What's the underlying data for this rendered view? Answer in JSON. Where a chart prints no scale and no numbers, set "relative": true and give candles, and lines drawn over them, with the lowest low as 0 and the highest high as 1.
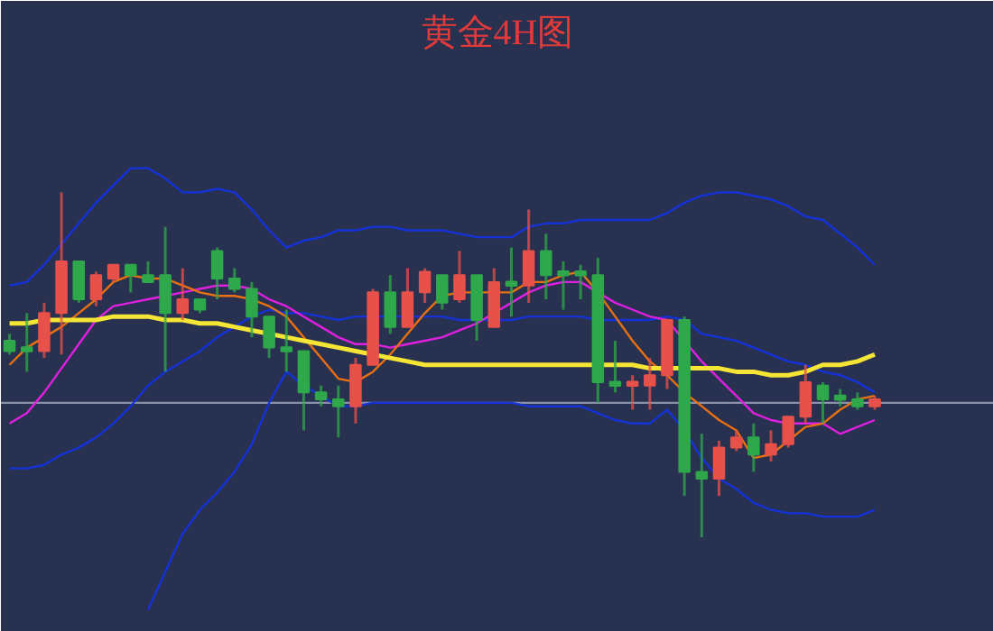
{
  "chart_data": {
    "type": "candlestick",
    "title": "黄金4H图",
    "relative": true,
    "categories": [
      null,
      null,
      null,
      null,
      null,
      null,
      null,
      null,
      null,
      null,
      null,
      null,
      null,
      null,
      null,
      null,
      null,
      null,
      null,
      null,
      null,
      null,
      null,
      null,
      null,
      null,
      null,
      null,
      null,
      null,
      null,
      null,
      null,
      null,
      null,
      null,
      null,
      null,
      null,
      null,
      null,
      null,
      null,
      null,
      null,
      null,
      null,
      null,
      null,
      null,
      null
    ],
    "ohlc": [
      [
        0.57,
        0.59,
        0.53,
        0.54
      ],
      [
        0.55,
        0.65,
        0.48,
        0.54
      ],
      [
        0.54,
        0.68,
        0.52,
        0.65
      ],
      [
        0.65,
        1.0,
        0.53,
        0.8
      ],
      [
        0.8,
        0.8,
        0.68,
        0.69
      ],
      [
        0.69,
        0.77,
        0.67,
        0.76
      ],
      [
        0.75,
        0.79,
        0.74,
        0.79
      ],
      [
        0.79,
        0.79,
        0.71,
        0.76
      ],
      [
        0.76,
        0.8,
        0.74,
        0.74
      ],
      [
        0.76,
        0.9,
        0.48,
        0.65
      ],
      [
        0.65,
        0.78,
        0.63,
        0.69
      ],
      [
        0.69,
        0.69,
        0.65,
        0.66
      ],
      [
        0.83,
        0.84,
        0.69,
        0.75
      ],
      [
        0.75,
        0.78,
        0.71,
        0.72
      ],
      [
        0.72,
        0.74,
        0.58,
        0.64
      ],
      [
        0.64,
        0.64,
        0.52,
        0.55
      ],
      [
        0.55,
        0.66,
        0.48,
        0.54
      ],
      [
        0.54,
        0.54,
        0.31,
        0.42
      ],
      [
        0.42,
        0.44,
        0.38,
        0.4
      ],
      [
        0.4,
        0.44,
        0.29,
        0.38
      ],
      [
        0.38,
        0.52,
        0.33,
        0.5
      ],
      [
        0.5,
        0.72,
        0.5,
        0.71
      ],
      [
        0.71,
        0.76,
        0.59,
        0.61
      ],
      [
        0.61,
        0.78,
        0.61,
        0.71
      ],
      [
        0.71,
        0.78,
        0.68,
        0.77
      ],
      [
        0.76,
        0.76,
        0.66,
        0.68
      ],
      [
        0.69,
        0.83,
        0.68,
        0.76
      ],
      [
        0.76,
        0.76,
        0.57,
        0.63
      ],
      [
        0.61,
        0.78,
        0.61,
        0.74
      ],
      [
        0.74,
        0.84,
        0.64,
        0.73
      ],
      [
        0.73,
        0.95,
        0.68,
        0.83
      ],
      [
        0.83,
        0.88,
        0.69,
        0.76
      ],
      [
        0.77,
        0.8,
        0.66,
        0.76
      ],
      [
        0.77,
        0.79,
        0.69,
        0.76
      ],
      [
        0.76,
        0.81,
        0.39,
        0.45
      ],
      [
        0.45,
        0.57,
        0.42,
        0.44
      ],
      [
        0.44,
        0.47,
        0.37,
        0.45
      ],
      [
        0.44,
        0.52,
        0.37,
        0.47
      ],
      [
        0.47,
        0.63,
        0.43,
        0.63
      ],
      [
        0.63,
        0.64,
        0.12,
        0.19
      ],
      [
        0.19,
        0.3,
        0.0,
        0.17
      ],
      [
        0.17,
        0.28,
        0.12,
        0.26
      ],
      [
        0.26,
        0.31,
        0.25,
        0.29
      ],
      [
        0.29,
        0.33,
        0.19,
        0.24
      ],
      [
        0.24,
        0.31,
        0.22,
        0.27
      ],
      [
        0.27,
        0.35,
        0.26,
        0.35
      ],
      [
        0.35,
        0.5,
        0.33,
        0.45
      ],
      [
        0.44,
        0.45,
        0.33,
        0.4
      ],
      [
        0.41,
        0.43,
        0.38,
        0.4
      ],
      [
        0.4,
        0.42,
        0.37,
        0.38
      ],
      [
        0.38,
        0.41,
        0.37,
        0.4
      ]
    ],
    "colors": [
      "#2ea84a",
      "#2ea84a",
      "#e8504a",
      "#e8504a",
      "#2ea84a",
      "#e8504a",
      "#e8504a",
      "#2ea84a",
      "#2ea84a",
      "#2ea84a",
      "#e8504a",
      "#2ea84a",
      "#2ea84a",
      "#2ea84a",
      "#2ea84a",
      "#2ea84a",
      "#2ea84a",
      "#2ea84a",
      "#2ea84a",
      "#2ea84a",
      "#e8504a",
      "#e8504a",
      "#2ea84a",
      "#e8504a",
      "#e8504a",
      "#2ea84a",
      "#e8504a",
      "#2ea84a",
      "#e8504a",
      "#2ea84a",
      "#e8504a",
      "#2ea84a",
      "#2ea84a",
      "#2ea84a",
      "#2ea84a",
      "#2ea84a",
      "#e8504a",
      "#e8504a",
      "#e8504a",
      "#2ea84a",
      "#2ea84a",
      "#e8504a",
      "#e8504a",
      "#2ea84a",
      "#e8504a",
      "#e8504a",
      "#e8504a",
      "#2ea84a",
      "#2ea84a",
      "#2ea84a",
      "#e8504a"
    ],
    "series": [
      {
        "type": "line",
        "color": "#1432d8",
        "values": [
          0.73,
          0.74,
          0.79,
          0.85,
          0.91,
          0.97,
          1.02,
          1.07,
          1.07,
          1.04,
          1.0,
          1.0,
          1.01,
          1.0,
          0.95,
          0.89,
          0.84,
          0.86,
          0.87,
          0.89,
          0.89,
          0.9,
          0.9,
          0.89,
          0.89,
          0.89,
          0.88,
          0.87,
          0.87,
          0.87,
          0.9,
          0.91,
          0.91,
          0.92,
          0.92,
          0.92,
          0.92,
          0.92,
          0.94,
          0.97,
          0.99,
          1.0,
          1.0,
          0.99,
          0.98,
          0.96,
          0.93,
          0.92,
          0.88,
          0.84,
          0.79
        ]
      },
      {
        "type": "line",
        "color": "#1432d8",
        "values": [
          0.2,
          0.2,
          0.21,
          0.24,
          0.26,
          0.29,
          0.33,
          0.38,
          0.44,
          0.48,
          0.51,
          0.54,
          0.58,
          0.61,
          0.64,
          0.66,
          0.65,
          0.65,
          0.64,
          0.63,
          0.64,
          0.64,
          0.64,
          0.64,
          0.64,
          0.64,
          0.63,
          0.63,
          0.63,
          0.63,
          0.64,
          0.64,
          0.64,
          0.64,
          0.63,
          0.63,
          0.63,
          0.63,
          0.64,
          0.63,
          0.59,
          0.58,
          0.57,
          0.55,
          0.53,
          0.51,
          0.5,
          0.48,
          0.47,
          0.45,
          0.42
        ]
      },
      {
        "type": "line",
        "color": "#1432d8",
        "values": [
          null,
          null,
          null,
          null,
          null,
          null,
          null,
          null,
          -0.21,
          -0.1,
          0.01,
          0.08,
          0.13,
          0.19,
          0.27,
          0.39,
          0.48,
          0.44,
          0.41,
          0.38,
          0.38,
          0.39,
          0.39,
          0.39,
          0.39,
          0.39,
          0.39,
          0.39,
          0.39,
          0.39,
          0.38,
          0.38,
          0.38,
          0.38,
          0.36,
          0.34,
          0.33,
          0.33,
          0.37,
          0.31,
          0.23,
          0.17,
          0.14,
          0.1,
          0.08,
          0.07,
          0.07,
          0.06,
          0.06,
          0.06,
          0.08
        ]
      },
      {
        "type": "line",
        "color": "#e020e0",
        "values": [
          0.33,
          0.36,
          0.42,
          0.49,
          0.56,
          0.63,
          0.67,
          0.68,
          0.69,
          0.7,
          0.71,
          0.72,
          0.73,
          0.73,
          0.72,
          0.69,
          0.67,
          0.64,
          0.61,
          0.58,
          0.56,
          0.56,
          0.55,
          0.56,
          0.57,
          0.58,
          0.6,
          0.62,
          0.65,
          0.68,
          0.71,
          0.73,
          0.74,
          0.74,
          0.71,
          0.68,
          0.66,
          0.64,
          0.63,
          0.57,
          0.51,
          0.46,
          0.41,
          0.36,
          0.34,
          0.33,
          0.33,
          0.33,
          0.3,
          0.32,
          0.34
        ]
      },
      {
        "type": "line",
        "color": "#e87010",
        "values": [
          0.5,
          0.55,
          0.58,
          0.61,
          0.65,
          0.69,
          0.74,
          0.76,
          0.75,
          0.75,
          0.73,
          0.71,
          0.7,
          0.7,
          0.69,
          0.67,
          0.64,
          0.58,
          0.52,
          0.46,
          0.45,
          0.48,
          0.53,
          0.59,
          0.65,
          0.7,
          0.71,
          0.71,
          0.71,
          0.71,
          0.74,
          0.74,
          0.76,
          0.77,
          0.71,
          0.64,
          0.57,
          0.51,
          0.47,
          0.42,
          0.38,
          0.34,
          0.31,
          0.23,
          0.24,
          0.28,
          0.32,
          0.33,
          0.37,
          0.4,
          0.41
        ]
      },
      {
        "type": "line",
        "color": "#f5e534",
        "values": [
          0.62,
          0.62,
          0.63,
          0.63,
          0.63,
          0.63,
          0.64,
          0.64,
          0.64,
          0.63,
          0.63,
          0.62,
          0.62,
          0.61,
          0.6,
          0.59,
          0.58,
          0.57,
          0.56,
          0.55,
          0.54,
          0.53,
          0.52,
          0.51,
          0.5,
          0.5,
          0.5,
          0.5,
          0.5,
          0.5,
          0.5,
          0.5,
          0.5,
          0.5,
          0.5,
          0.5,
          0.5,
          0.49,
          0.49,
          0.49,
          0.49,
          0.49,
          0.48,
          0.48,
          0.47,
          0.47,
          0.48,
          0.5,
          0.5,
          0.51,
          0.53
        ]
      }
    ],
    "ref_lines": [
      {
        "axis": "y",
        "value": 0.39,
        "color": "#8a92aa"
      }
    ]
  }
}
